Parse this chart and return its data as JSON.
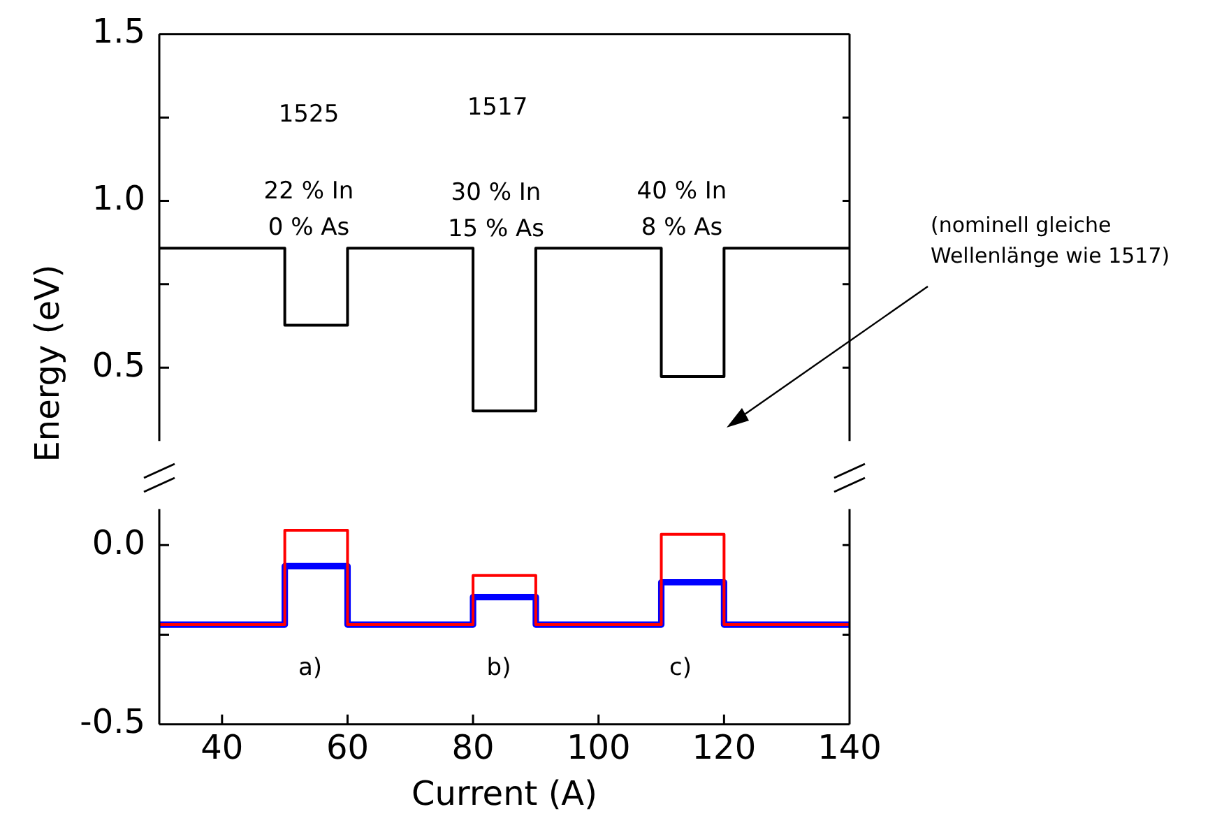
{
  "chart_data": [
    {
      "type": "line",
      "ylabel": "Energy (eV)",
      "xlim": [
        30,
        140
      ],
      "ylim": [
        0.28,
        1.5
      ],
      "yticks": [
        {
          "value": 0.5,
          "label": "0.5"
        },
        {
          "value": 0.75,
          "label": null
        },
        {
          "value": 1.0,
          "label": "1.0"
        },
        {
          "value": 1.25,
          "label": null
        },
        {
          "value": 1.5,
          "label": "1.5"
        }
      ],
      "tick_labels": "y",
      "grid": false,
      "legend": false,
      "marker": "none",
      "series": [
        {
          "color": "#000000",
          "x": [
            30,
            50,
            50,
            60,
            60,
            80,
            80,
            90,
            90,
            110,
            110,
            120,
            120,
            140
          ],
          "values": [
            0.858,
            0.858,
            0.627,
            0.627,
            0.858,
            0.858,
            0.37,
            0.37,
            0.858,
            0.858,
            0.473,
            0.473,
            0.858,
            0.858
          ]
        }
      ],
      "annotations": [
        "1525",
        "1517",
        "22 % In\n0 % As",
        "30 % In\n15 % As",
        "40 % In\n8 % As",
        "(nominell gleiche\nWellenlänge wie 1517)"
      ]
    },
    {
      "type": "line",
      "xlabel": "Current (A)",
      "xlim": [
        30,
        140
      ],
      "xticks": [
        40,
        60,
        80,
        100,
        120,
        140
      ],
      "ylim": [
        -0.5,
        0.1
      ],
      "yticks": [
        {
          "value": -0.5,
          "label": "-0.5"
        },
        {
          "value": -0.25,
          "label": null
        },
        {
          "value": 0.0,
          "label": "0.0"
        }
      ],
      "grid": false,
      "legend": false,
      "marker": "none",
      "series": [
        {
          "color": "#ff0000",
          "x": [
            30,
            50,
            50,
            60,
            60,
            80,
            80,
            90,
            90,
            110,
            110,
            120,
            120,
            140
          ],
          "values": [
            -0.222,
            -0.222,
            0.041,
            0.041,
            -0.222,
            -0.222,
            -0.085,
            -0.085,
            -0.222,
            -0.222,
            0.03,
            0.03,
            -0.222,
            -0.222
          ]
        },
        {
          "color": "#0000ff",
          "x": [
            30,
            50,
            50,
            60,
            60,
            80,
            80,
            90,
            90,
            110,
            110,
            120,
            120,
            140
          ],
          "values": [
            -0.222,
            -0.222,
            -0.059,
            -0.059,
            -0.222,
            -0.222,
            -0.145,
            -0.145,
            -0.222,
            -0.222,
            -0.104,
            -0.104,
            -0.222,
            -0.222
          ]
        }
      ],
      "annotations": [
        "a)",
        "b)",
        "c)"
      ]
    }
  ]
}
